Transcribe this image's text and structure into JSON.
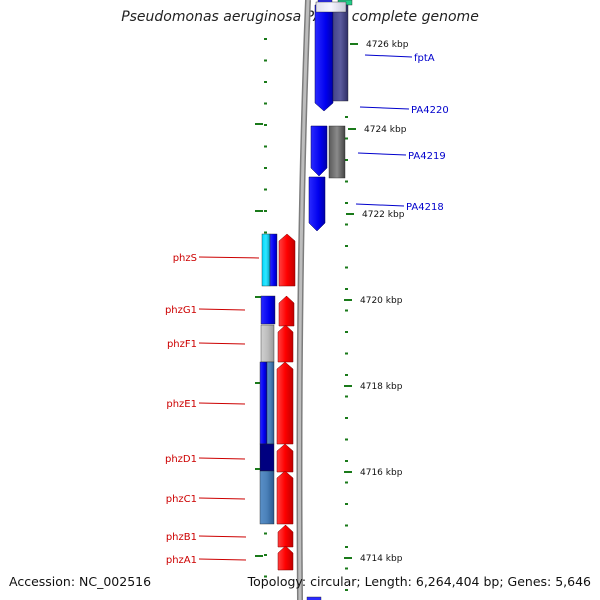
{
  "title": "Pseudomonas aeruginosa PAO1, complete genome",
  "footer": {
    "accession": "Accession: NC_002516",
    "info": "Topology: circular; Length: 6,264,404 bp; Genes: 5,646"
  },
  "colors": {
    "background": "#ffffff",
    "tick_green": "#1a7a1a",
    "label_red": "#cc0000",
    "label_blue": "#0000cc",
    "genome_line": "#888888"
  },
  "kbp_ticks": [
    {
      "label": "4726 kbp"
    },
    {
      "label": "4724 kbp"
    },
    {
      "label": "4722 kbp"
    },
    {
      "label": "4720 kbp"
    },
    {
      "label": "4718 kbp"
    },
    {
      "label": "4716 kbp"
    },
    {
      "label": "4714 kbp"
    }
  ],
  "forward_genes": [
    {
      "name": "fptA"
    },
    {
      "name": "PA4220"
    },
    {
      "name": "PA4219"
    },
    {
      "name": "PA4218"
    }
  ],
  "reverse_genes": [
    {
      "name": "phzS"
    },
    {
      "name": "phzG1"
    },
    {
      "name": "phzF1"
    },
    {
      "name": "phzE1"
    },
    {
      "name": "phzD1"
    },
    {
      "name": "phzC1"
    },
    {
      "name": "phzB1"
    },
    {
      "name": "phzA1"
    }
  ]
}
